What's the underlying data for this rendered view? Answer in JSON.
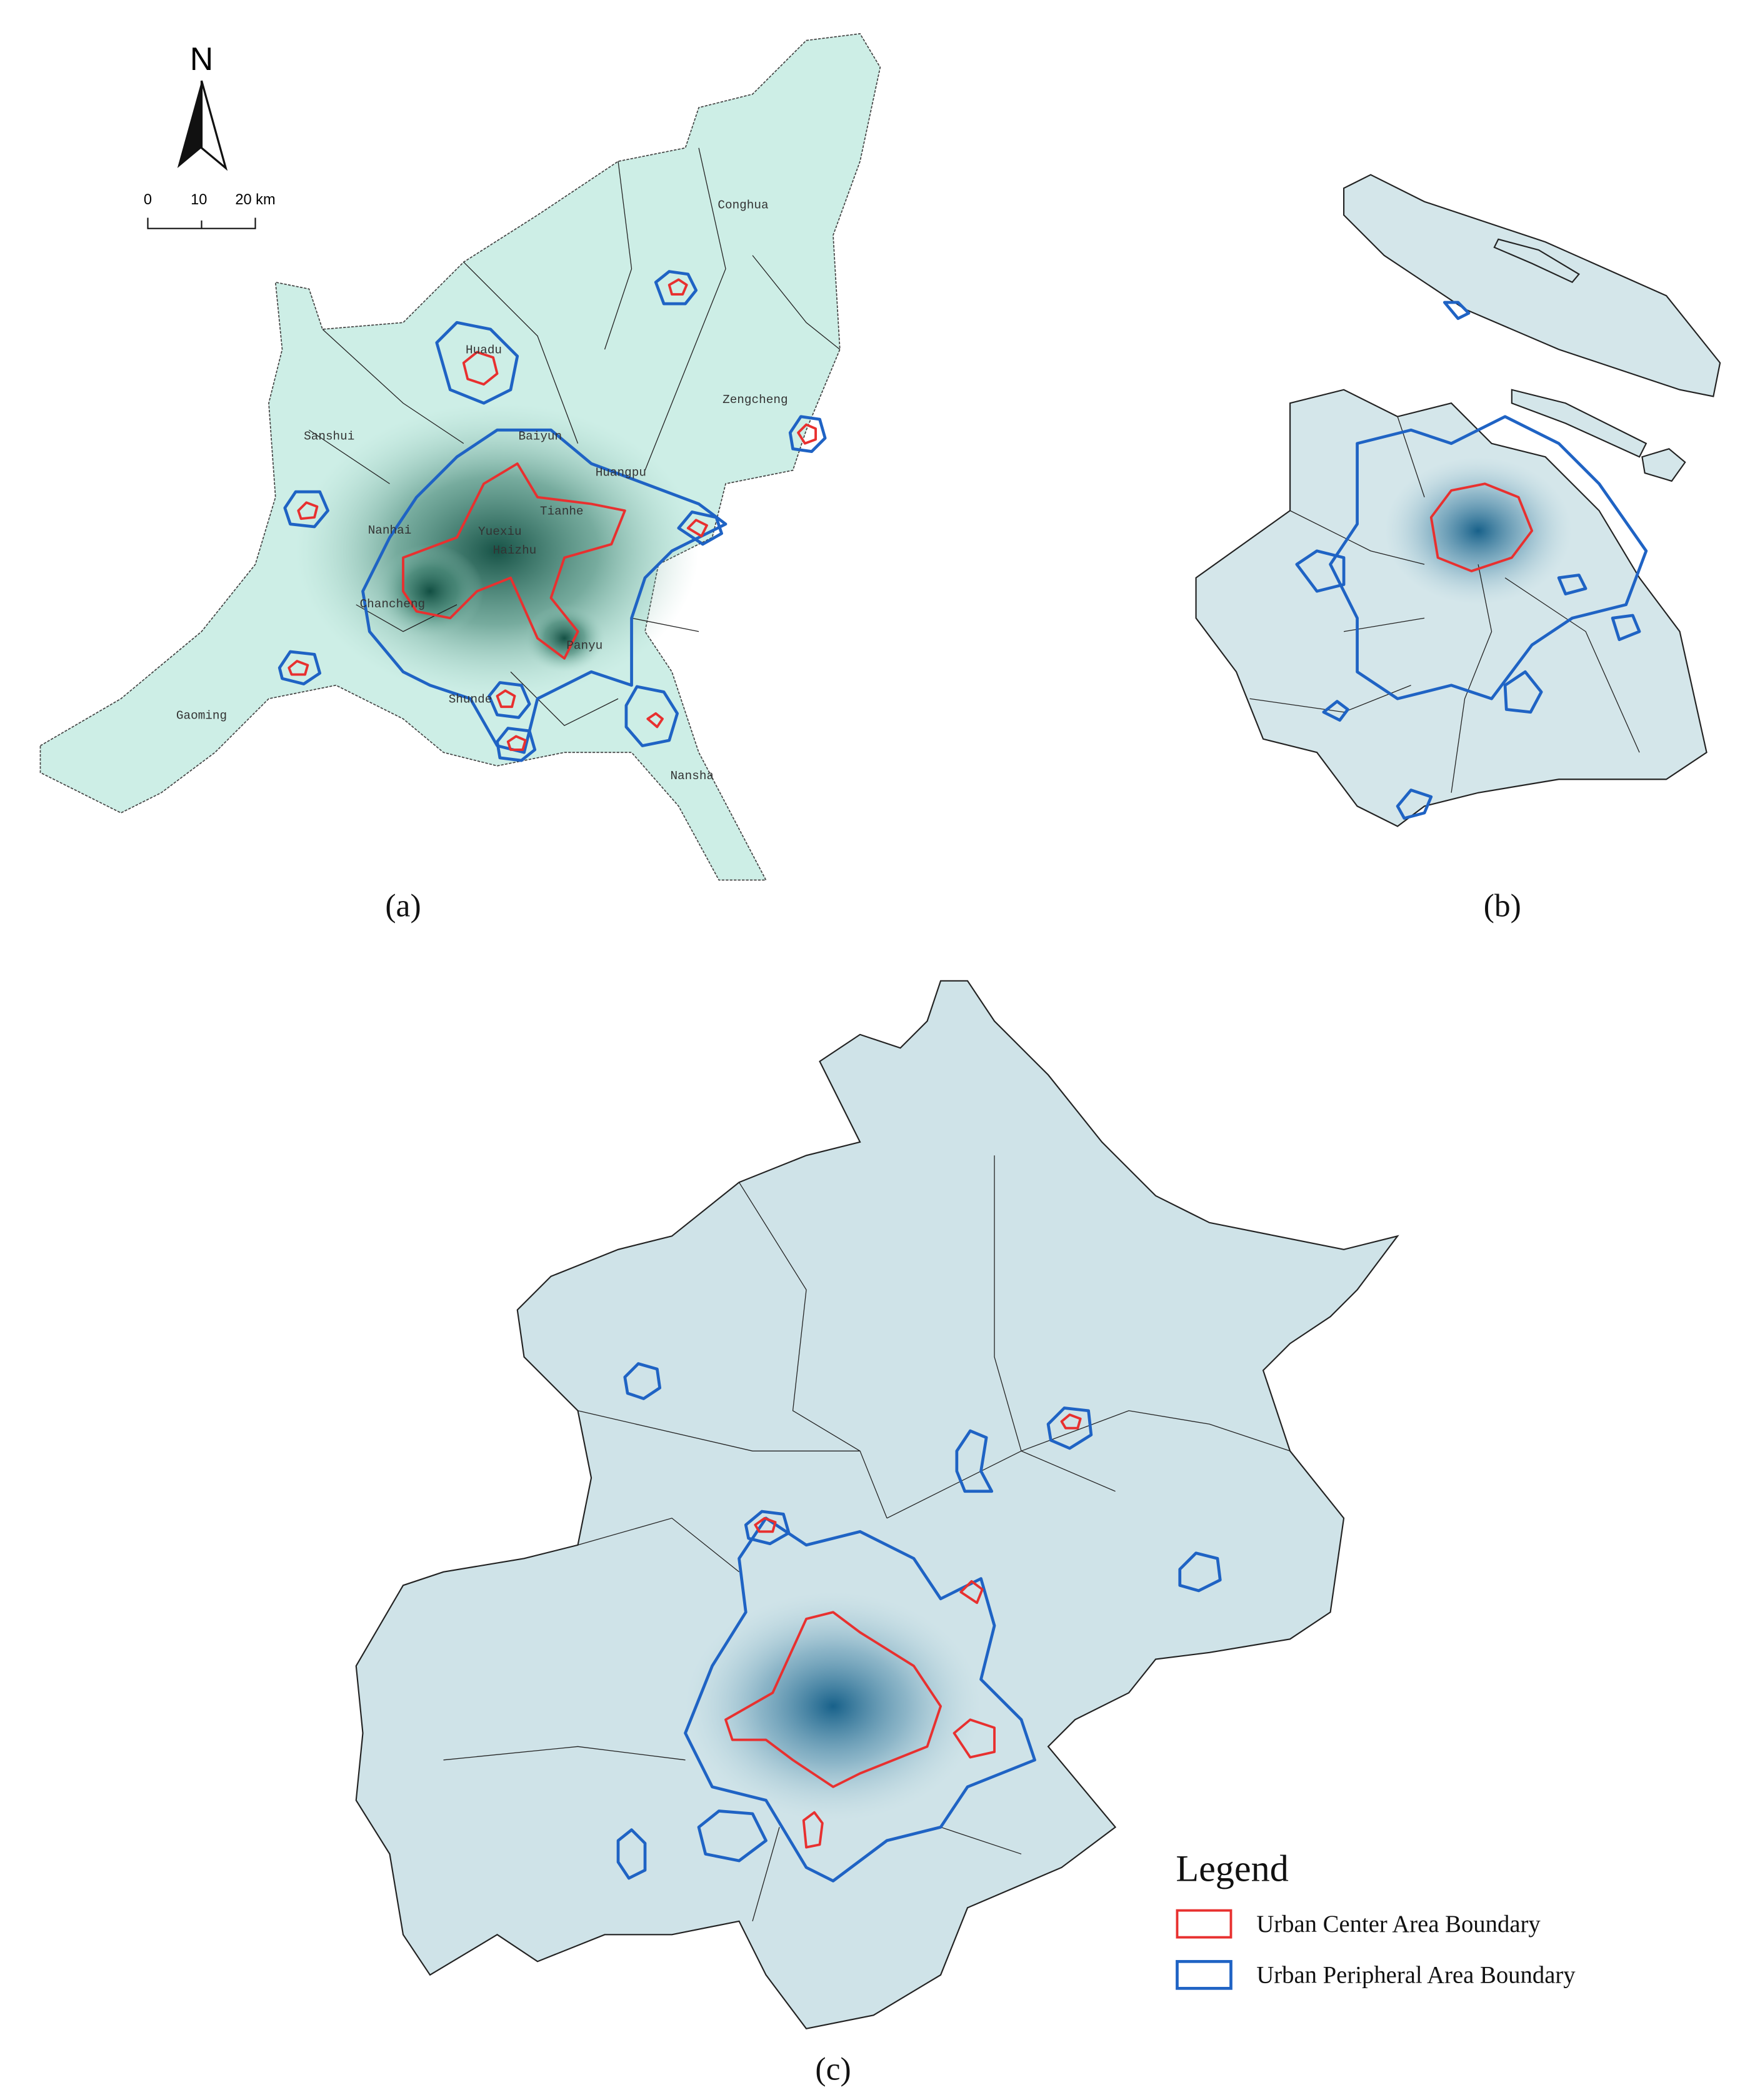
{
  "panels": [
    {
      "label": "(a)",
      "places": [
        "Conghua",
        "Huadu",
        "Zengcheng",
        "Sanshui",
        "Baiyun",
        "Huangpu",
        "Nanhai",
        "Tianhe",
        "Yuexiu",
        "Haizhu",
        "Chancheng",
        "Panyu",
        "Shunde",
        "Gaoming",
        "Nansha"
      ]
    },
    {
      "label": "(b)"
    },
    {
      "label": "(c)"
    }
  ],
  "north_arrow": {
    "label": "N"
  },
  "scale_bar": {
    "labels": [
      "0",
      "10",
      "20 km"
    ]
  },
  "legend": {
    "title": "Legend",
    "items": [
      "Urban Center Area Boundary",
      "Urban Peripheral Area Boundary"
    ]
  }
}
